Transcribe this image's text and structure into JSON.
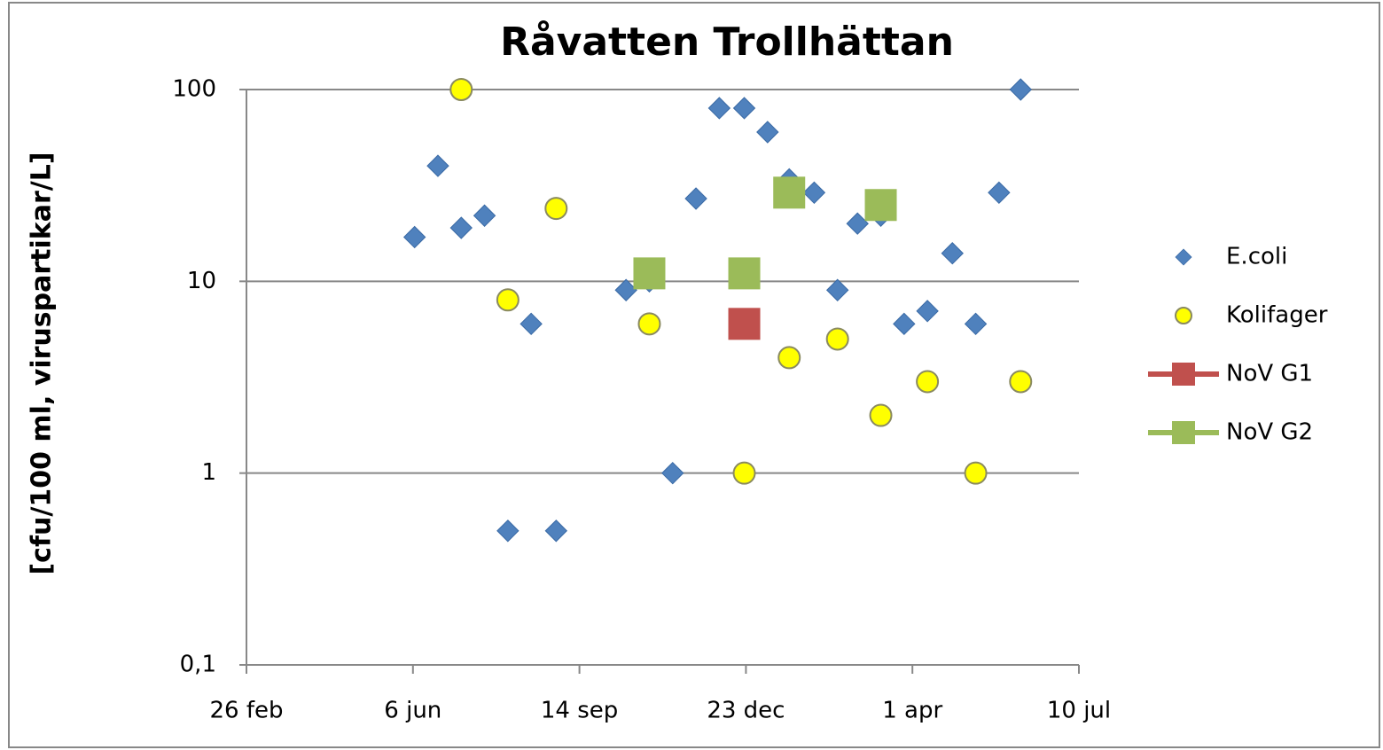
{
  "chart_data": {
    "type": "scatter",
    "title": "Råvatten Trollhättan",
    "y_label": "[cfu/100 ml, viruspartikar/L]",
    "xlim": [
      0,
      500
    ],
    "xticks": [
      {
        "value": 0,
        "label": "26 feb"
      },
      {
        "value": 100,
        "label": "6 jun"
      },
      {
        "value": 200,
        "label": "14 sep"
      },
      {
        "value": 300,
        "label": "23 dec"
      },
      {
        "value": 400,
        "label": "1 apr"
      },
      {
        "value": 500,
        "label": "10 jul"
      }
    ],
    "ylim": [
      0.1,
      100
    ],
    "y_scale": "log",
    "yticks": [
      {
        "value": 0.1,
        "label": "0,1"
      },
      1,
      10,
      100
    ],
    "grid": true,
    "legend": "right",
    "series": [
      {
        "name": "E.coli",
        "color": "#4f81bd",
        "marker": "diamond",
        "x": [
          101,
          115,
          129,
          143,
          157,
          171,
          186,
          228,
          242,
          256,
          270,
          284,
          299,
          313,
          326,
          341,
          355,
          367,
          381,
          395,
          409,
          424,
          438,
          452,
          465
        ],
        "values": [
          17,
          40,
          19,
          22,
          0.5,
          6,
          0.5,
          9,
          10,
          1,
          27,
          80,
          80,
          60,
          34,
          29,
          9,
          20,
          22,
          6,
          7,
          14,
          6,
          29,
          100
        ]
      },
      {
        "name": "Kolifager",
        "color": "#ffff00",
        "marker": "circle",
        "x": [
          129,
          157,
          186,
          242,
          299,
          326,
          355,
          381,
          409,
          438,
          465
        ],
        "values": [
          100,
          8,
          24,
          6,
          1,
          4,
          5,
          2,
          3,
          1,
          3
        ]
      },
      {
        "name": "NoV G1",
        "color": "#c0504d",
        "marker": "square",
        "x": [
          299
        ],
        "values": [
          6
        ]
      },
      {
        "name": "NoV G2",
        "color": "#9bbb59",
        "marker": "square",
        "x": [
          242,
          299,
          326,
          381
        ],
        "values": [
          11,
          11,
          29,
          25
        ]
      }
    ]
  }
}
